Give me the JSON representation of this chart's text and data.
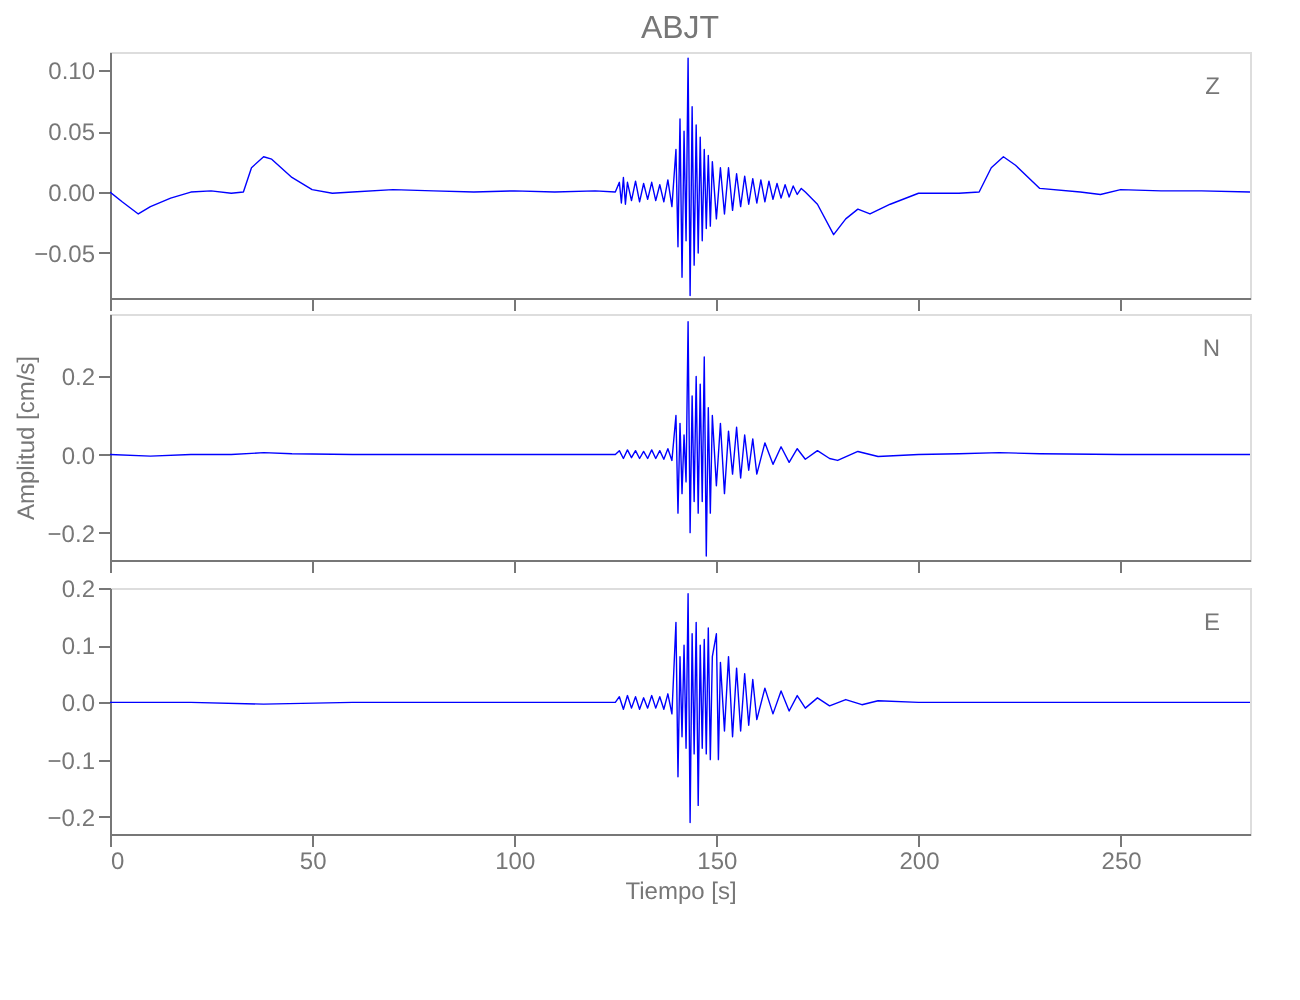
{
  "chart_data": [
    {
      "type": "line",
      "title": "ABJT",
      "annotations": [
        "Z"
      ],
      "xlim": [
        0,
        282
      ],
      "xticks": [
        0,
        50,
        100,
        150,
        200,
        250
      ],
      "ylim": [
        -0.087,
        0.115
      ],
      "yticks": [
        {
          "value": -0.05,
          "label": "−0.05"
        },
        {
          "value": 0,
          "label": "0.00"
        },
        {
          "value": 0.05,
          "label": "0.05"
        },
        {
          "value": 0.1,
          "label": "0.10"
        }
      ],
      "tick_labels": "y",
      "grid": false,
      "series": [
        {
          "color": "#0000ff",
          "x": [
            0,
            3,
            7,
            10,
            15,
            20,
            25,
            30,
            33,
            35,
            38,
            40,
            45,
            50,
            55,
            60,
            70,
            80,
            90,
            100,
            110,
            120,
            125,
            126,
            126.5,
            127,
            127.5,
            128,
            129,
            130,
            131,
            132,
            133,
            134,
            135,
            136,
            137,
            138,
            139,
            140,
            140.5,
            141,
            141.5,
            142,
            142.5,
            143,
            143.5,
            144,
            144.5,
            145,
            145.5,
            146,
            146.5,
            147,
            147.5,
            148,
            148.5,
            149,
            150,
            151,
            152,
            153,
            154,
            155,
            156,
            157,
            158,
            159,
            160,
            161,
            162,
            163,
            164,
            165,
            166,
            167,
            168,
            169,
            170,
            171,
            172,
            175,
            179,
            182,
            185,
            188,
            193,
            200,
            210,
            215,
            218,
            221,
            224,
            230,
            240,
            245,
            250,
            260,
            270,
            282
          ],
          "values": [
            0,
            -0.008,
            -0.018,
            -0.012,
            -0.005,
            0,
            0.001,
            -0.001,
            0,
            0.02,
            0.029,
            0.027,
            0.012,
            0.002,
            -0.001,
            0,
            0.002,
            0.001,
            0,
            0.001,
            0,
            0.001,
            0,
            0.008,
            -0.009,
            0.012,
            -0.01,
            0.008,
            -0.007,
            0.009,
            -0.008,
            0.007,
            -0.006,
            0.008,
            -0.007,
            0.006,
            -0.008,
            0.01,
            -0.012,
            0.035,
            -0.045,
            0.06,
            -0.07,
            0.05,
            -0.04,
            0.11,
            -0.085,
            0.07,
            -0.06,
            0.055,
            -0.05,
            0.045,
            -0.04,
            0.035,
            -0.03,
            0.03,
            -0.028,
            0.025,
            -0.022,
            0.02,
            -0.018,
            0.02,
            -0.015,
            0.015,
            -0.012,
            0.013,
            -0.01,
            0.011,
            -0.009,
            0.01,
            -0.008,
            0.009,
            -0.006,
            0.007,
            -0.005,
            0.006,
            -0.004,
            0.005,
            -0.002,
            0.003,
            0,
            -0.01,
            -0.035,
            -0.022,
            -0.014,
            -0.018,
            -0.01,
            -0.001,
            -0.001,
            0,
            0.02,
            0.029,
            0.022,
            0.003,
            0,
            -0.002,
            0.002,
            0.001,
            0.001,
            0
          ]
        }
      ]
    },
    {
      "type": "line",
      "ylabel": "Amplitud [cm/s]",
      "annotations": [
        "N"
      ],
      "xlim": [
        0,
        282
      ],
      "xticks": [
        0,
        50,
        100,
        150,
        200,
        250
      ],
      "ylim": [
        -0.27,
        0.36
      ],
      "yticks": [
        {
          "value": -0.2,
          "label": "−0.2"
        },
        {
          "value": 0,
          "label": "0.0"
        },
        {
          "value": 0.2,
          "label": "0.2"
        }
      ],
      "tick_labels": "y",
      "grid": false,
      "series": [
        {
          "color": "#0000ff",
          "x": [
            0,
            10,
            20,
            30,
            38,
            45,
            60,
            80,
            100,
            120,
            125,
            126,
            127,
            128,
            129,
            130,
            131,
            132,
            133,
            134,
            135,
            136,
            137,
            138,
            139,
            140,
            140.5,
            141,
            141.5,
            142,
            142.5,
            143,
            143.5,
            144,
            144.5,
            145,
            145.5,
            146,
            146.5,
            147,
            147.5,
            148,
            148.5,
            149,
            150,
            151,
            152,
            153,
            154,
            155,
            156,
            157,
            158,
            159,
            160,
            162,
            164,
            166,
            168,
            170,
            172,
            175,
            178,
            180,
            185,
            190,
            200,
            210,
            220,
            230,
            250,
            282
          ],
          "values": [
            0,
            -0.004,
            0,
            0,
            0.005,
            0.002,
            0,
            0,
            0,
            0,
            0,
            0.01,
            -0.01,
            0.012,
            -0.008,
            0.01,
            -0.01,
            0.008,
            -0.01,
            0.012,
            -0.01,
            0.01,
            -0.012,
            0.015,
            -0.015,
            0.1,
            -0.15,
            0.08,
            -0.1,
            0.05,
            -0.07,
            0.34,
            -0.2,
            0.15,
            -0.12,
            0.2,
            -0.15,
            0.18,
            -0.12,
            0.25,
            -0.26,
            0.12,
            -0.15,
            0.1,
            -0.08,
            0.08,
            -0.1,
            0.06,
            -0.05,
            0.07,
            -0.06,
            0.05,
            -0.04,
            0.04,
            -0.05,
            0.03,
            -0.025,
            0.02,
            -0.02,
            0.015,
            -0.012,
            0.01,
            -0.01,
            -0.015,
            0.008,
            -0.005,
            0,
            0.002,
            0.005,
            0.002,
            0,
            0
          ]
        }
      ]
    },
    {
      "type": "line",
      "xlabel": "Tiempo [s]",
      "annotations": [
        "E"
      ],
      "xlim": [
        0,
        282
      ],
      "xticks": [
        0,
        50,
        100,
        150,
        200,
        250
      ],
      "ylim": [
        -0.23,
        0.2
      ],
      "yticks": [
        {
          "value": -0.2,
          "label": "−0.2"
        },
        {
          "value": -0.1,
          "label": "−0.1"
        },
        {
          "value": 0,
          "label": "0.0"
        },
        {
          "value": 0.1,
          "label": "0.1"
        },
        {
          "value": 0.2,
          "label": "0.2"
        }
      ],
      "grid": false,
      "series": [
        {
          "color": "#0000ff",
          "x": [
            0,
            20,
            38,
            60,
            80,
            100,
            120,
            125,
            126,
            127,
            128,
            129,
            130,
            131,
            132,
            133,
            134,
            135,
            136,
            137,
            138,
            139,
            140,
            140.5,
            141,
            141.5,
            142,
            142.5,
            143,
            143.5,
            144,
            144.5,
            145,
            145.5,
            146,
            146.5,
            147,
            147.5,
            148,
            148.5,
            149,
            150,
            150.5,
            151,
            152,
            153,
            154,
            155,
            156,
            157,
            158,
            159,
            160,
            162,
            164,
            166,
            168,
            170,
            172,
            175,
            178,
            182,
            186,
            190,
            200,
            220,
            250,
            282
          ],
          "values": [
            0,
            0,
            -0.003,
            0,
            0,
            0,
            0,
            0,
            0.01,
            -0.012,
            0.012,
            -0.01,
            0.01,
            -0.012,
            0.008,
            -0.01,
            0.012,
            -0.01,
            0.01,
            -0.012,
            0.015,
            -0.02,
            0.14,
            -0.13,
            0.08,
            -0.06,
            0.1,
            -0.08,
            0.19,
            -0.21,
            0.12,
            -0.09,
            0.14,
            -0.18,
            0.1,
            -0.08,
            0.11,
            -0.09,
            0.13,
            -0.1,
            0.08,
            0.12,
            -0.1,
            0.07,
            -0.05,
            0.08,
            -0.06,
            0.06,
            -0.05,
            0.05,
            -0.04,
            0.04,
            -0.03,
            0.025,
            -0.02,
            0.02,
            -0.015,
            0.012,
            -0.01,
            0.008,
            -0.006,
            0.005,
            -0.004,
            0.003,
            0,
            0,
            0,
            0
          ]
        }
      ]
    }
  ]
}
